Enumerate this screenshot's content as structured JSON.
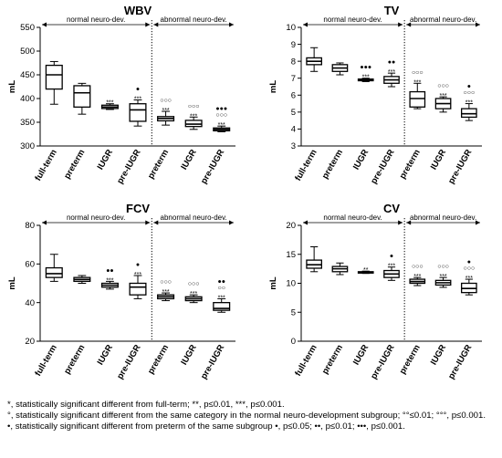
{
  "chart_data": [
    {
      "type": "box",
      "title": "WBV",
      "ylabel": "mL",
      "ylim": [
        300,
        550
      ],
      "yticks": [
        300,
        350,
        400,
        450,
        500,
        550
      ],
      "categories": [
        "full-term",
        "preterm",
        "IUGR",
        "pre-IUGR",
        "preterm",
        "IUGR",
        "pre-IUGR"
      ],
      "groups": [
        {
          "label": "normal neuro-dev.",
          "span": [
            0,
            3
          ]
        },
        {
          "label": "abnormal neuro-dev.",
          "span": [
            4,
            6
          ]
        }
      ],
      "boxes": [
        {
          "min": 388,
          "q1": 420,
          "median": 450,
          "q3": 470,
          "max": 478
        },
        {
          "min": 367,
          "q1": 382,
          "median": 412,
          "q3": 427,
          "max": 432
        },
        {
          "min": 377,
          "q1": 379,
          "median": 382,
          "q3": 386,
          "max": 389
        },
        {
          "min": 342,
          "q1": 352,
          "median": 376,
          "q3": 389,
          "max": 397
        },
        {
          "min": 344,
          "q1": 353,
          "median": 358,
          "q3": 362,
          "max": 373
        },
        {
          "min": 335,
          "q1": 341,
          "median": 346,
          "q3": 354,
          "max": 361
        },
        {
          "min": 330,
          "q1": 332,
          "median": 335,
          "q3": 338,
          "max": 342
        }
      ],
      "annotations": [
        [],
        [],
        [
          "***"
        ],
        [
          "●",
          "***"
        ],
        [
          "○○○",
          "***"
        ],
        [
          "○○○",
          "***"
        ],
        [
          "●●●",
          "○○○",
          "***"
        ]
      ]
    },
    {
      "type": "box",
      "title": "TV",
      "ylabel": "mL",
      "ylim": [
        3,
        10
      ],
      "yticks": [
        3,
        4,
        5,
        6,
        7,
        8,
        9,
        10
      ],
      "categories": [
        "full-term",
        "preterm",
        "IUGR",
        "pre-IUGR",
        "preterm",
        "IUGR",
        "pre-IUGR"
      ],
      "groups": [
        {
          "label": "normal neuro-dev.",
          "span": [
            0,
            3
          ]
        },
        {
          "label": "abnormal neuro-dev.",
          "span": [
            4,
            6
          ]
        }
      ],
      "boxes": [
        {
          "min": 7.4,
          "q1": 7.8,
          "median": 8.0,
          "q3": 8.2,
          "max": 8.8
        },
        {
          "min": 7.2,
          "q1": 7.4,
          "median": 7.6,
          "q3": 7.8,
          "max": 7.9
        },
        {
          "min": 6.8,
          "q1": 6.85,
          "median": 6.9,
          "q3": 6.95,
          "max": 7.0
        },
        {
          "min": 6.5,
          "q1": 6.7,
          "median": 6.9,
          "q3": 7.1,
          "max": 7.3
        },
        {
          "min": 5.2,
          "q1": 5.3,
          "median": 5.8,
          "q3": 6.2,
          "max": 6.7
        },
        {
          "min": 5.0,
          "q1": 5.2,
          "median": 5.5,
          "q3": 5.8,
          "max": 5.9
        },
        {
          "min": 4.5,
          "q1": 4.7,
          "median": 4.9,
          "q3": 5.2,
          "max": 5.5
        }
      ],
      "annotations": [
        [],
        [],
        [
          "●●●",
          "***"
        ],
        [
          "●●",
          "***"
        ],
        [
          "○○○",
          "***"
        ],
        [
          "○○○",
          "***"
        ],
        [
          "●",
          "○○○",
          "***"
        ]
      ]
    },
    {
      "type": "box",
      "title": "FCV",
      "ylabel": "mL",
      "ylim": [
        20,
        80
      ],
      "yticks": [
        20,
        40,
        60,
        80
      ],
      "categories": [
        "full-term",
        "preterm",
        "IUGR",
        "pre-IUGR",
        "preterm",
        "IUGR",
        "pre-IUGR"
      ],
      "groups": [
        {
          "label": "normal neuro-dev.",
          "span": [
            0,
            3
          ]
        },
        {
          "label": "abnormal neuro-dev.",
          "span": [
            4,
            6
          ]
        }
      ],
      "boxes": [
        {
          "min": 51,
          "q1": 53,
          "median": 55,
          "q3": 58,
          "max": 65
        },
        {
          "min": 50,
          "q1": 51,
          "median": 52,
          "q3": 53,
          "max": 54
        },
        {
          "min": 47,
          "q1": 48,
          "median": 49,
          "q3": 50,
          "max": 51
        },
        {
          "min": 42,
          "q1": 44,
          "median": 48,
          "q3": 50,
          "max": 54
        },
        {
          "min": 41,
          "q1": 42,
          "median": 43,
          "q3": 44,
          "max": 45
        },
        {
          "min": 40,
          "q1": 41,
          "median": 42,
          "q3": 43,
          "max": 44
        },
        {
          "min": 35,
          "q1": 36,
          "median": 37,
          "q3": 40,
          "max": 42
        }
      ],
      "annotations": [
        [],
        [],
        [
          "●●",
          "***"
        ],
        [
          "●",
          "***"
        ],
        [
          "○○○",
          "***"
        ],
        [
          "○○○",
          "***"
        ],
        [
          "●●",
          "○○",
          "***"
        ]
      ]
    },
    {
      "type": "box",
      "title": "CV",
      "ylabel": "mL",
      "ylim": [
        0,
        20
      ],
      "yticks": [
        0,
        5,
        10,
        15,
        20
      ],
      "categories": [
        "full-term",
        "preterm",
        "IUGR",
        "pre-IUGR",
        "preterm",
        "IUGR",
        "pre-IUGR"
      ],
      "groups": [
        {
          "label": "normal neuro-dev.",
          "span": [
            0,
            3
          ]
        },
        {
          "label": "abnormal neuro-dev.",
          "span": [
            4,
            6
          ]
        }
      ],
      "boxes": [
        {
          "min": 12.0,
          "q1": 12.6,
          "median": 13.2,
          "q3": 14.0,
          "max": 16.3
        },
        {
          "min": 11.5,
          "q1": 12.0,
          "median": 12.5,
          "q3": 12.9,
          "max": 13.5
        },
        {
          "min": 11.7,
          "q1": 11.8,
          "median": 11.9,
          "q3": 12.0,
          "max": 12.1
        },
        {
          "min": 10.5,
          "q1": 11.0,
          "median": 11.6,
          "q3": 12.2,
          "max": 12.8
        },
        {
          "min": 9.6,
          "q1": 10.0,
          "median": 10.3,
          "q3": 10.7,
          "max": 11.0
        },
        {
          "min": 9.3,
          "q1": 9.7,
          "median": 10.1,
          "q3": 10.5,
          "max": 11.0
        },
        {
          "min": 8.0,
          "q1": 8.4,
          "median": 9.1,
          "q3": 10.0,
          "max": 10.7
        }
      ],
      "annotations": [
        [],
        [],
        [
          "**"
        ],
        [
          "●",
          "***"
        ],
        [
          "○○○",
          "***"
        ],
        [
          "○○○",
          "***"
        ],
        [
          "●",
          "○○○",
          "***"
        ]
      ]
    }
  ],
  "footnotes": [
    "*, statistically significant different from full-term; **, p≤0.01, ***, p≤0.001.",
    "°, statistically significant different from the same category in the normal neuro-development subgroup; °°≤0.01; °°°, p≤0.001.",
    "•, statistically significant different from preterm of the same subgroup  •, p≤0.05; ••, p≤0.01; •••, p≤0.001."
  ]
}
